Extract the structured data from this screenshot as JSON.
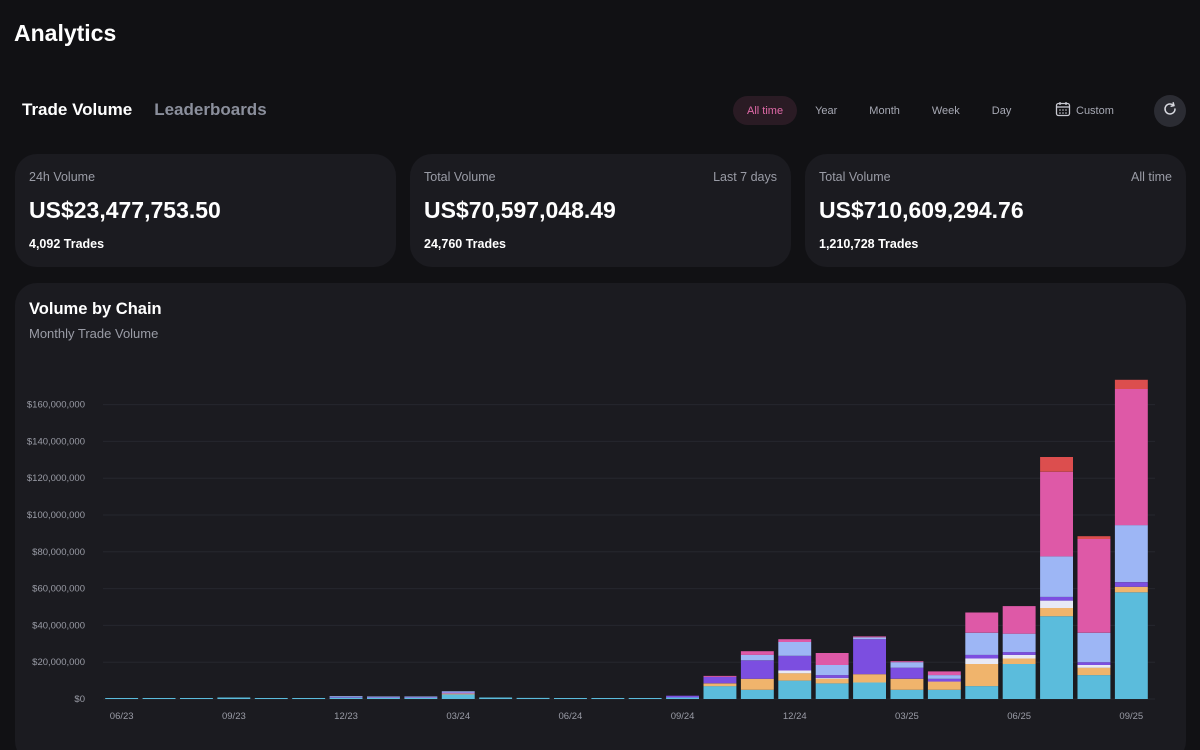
{
  "app": {
    "title": "Analytics"
  },
  "tabs": [
    {
      "label": "Trade Volume",
      "active": true
    },
    {
      "label": "Leaderboards",
      "active": false
    }
  ],
  "time_range": {
    "options": [
      "All time",
      "Year",
      "Month",
      "Week",
      "Day"
    ],
    "selected": "All time",
    "custom_label": "Custom"
  },
  "stats": [
    {
      "label": "24h Volume",
      "period": "",
      "value": "US$23,477,753.50",
      "trades": "4,092 Trades"
    },
    {
      "label": "Total Volume",
      "period": "Last 7 days",
      "value": "US$70,597,048.49",
      "trades": "24,760 Trades"
    },
    {
      "label": "Total Volume",
      "period": "All time",
      "value": "US$710,609,294.76",
      "trades": "1,210,728 Trades"
    }
  ],
  "chart_section": {
    "title": "Volume by Chain",
    "subtitle": "Monthly Trade Volume"
  },
  "chart_data": {
    "type": "bar",
    "stacked": true,
    "title": "Volume by Chain",
    "subtitle": "Monthly Trade Volume",
    "ylim": [
      0,
      175000000
    ],
    "y_ticks": [
      0,
      20000000,
      40000000,
      60000000,
      80000000,
      100000000,
      120000000,
      140000000,
      160000000
    ],
    "y_tick_labels": [
      "$0",
      "$20,000,000",
      "$40,000,000",
      "$60,000,000",
      "$80,000,000",
      "$100,000,000",
      "$120,000,000",
      "$140,000,000",
      "$160,000,000"
    ],
    "categories": [
      "06/23",
      "07/23",
      "08/23",
      "09/23",
      "10/23",
      "11/23",
      "12/23",
      "01/24",
      "02/24",
      "03/24",
      "04/24",
      "05/24",
      "06/24",
      "07/24",
      "08/24",
      "09/24",
      "10/24",
      "11/24",
      "12/24",
      "01/25",
      "02/25",
      "03/25",
      "04/25",
      "05/25",
      "06/25",
      "07/25",
      "08/25",
      "09/25"
    ],
    "x_tick_labels": [
      "06/23",
      "09/23",
      "12/23",
      "03/24",
      "06/24",
      "09/24",
      "12/24",
      "03/25",
      "06/25",
      "09/25"
    ],
    "grid": true,
    "legend": "none",
    "series": [
      {
        "name": "series-1",
        "color": "#5bbcdc",
        "values": [
          0.3,
          0.2,
          0.3,
          0.8,
          0.5,
          0.5,
          0.7,
          0.6,
          0.6,
          2.5,
          0.8,
          0.6,
          0.5,
          0.5,
          0.5,
          0.8,
          7,
          5,
          10,
          8.5,
          9,
          5,
          5,
          7,
          19,
          45,
          13,
          58
        ]
      },
      {
        "name": "series-2",
        "color": "#f0b46c",
        "values": [
          0,
          0,
          0,
          0,
          0,
          0,
          0,
          0,
          0,
          0.5,
          0,
          0,
          0,
          0,
          0,
          0,
          1.5,
          6,
          4,
          2.5,
          4.5,
          6,
          4.5,
          12,
          3,
          4.5,
          4,
          3
        ]
      },
      {
        "name": "series-3",
        "color": "#e8e9f5",
        "values": [
          0,
          0,
          0,
          0,
          0,
          0,
          0,
          0,
          0,
          0,
          0,
          0,
          0,
          0,
          0,
          0,
          0,
          0,
          1.5,
          0.5,
          0,
          0,
          0,
          3,
          2,
          4,
          1.5,
          0
        ]
      },
      {
        "name": "series-4",
        "color": "#7c4ee0",
        "values": [
          0,
          0,
          0,
          0,
          0,
          0,
          0.3,
          0.2,
          0.2,
          0.5,
          0,
          0,
          0,
          0,
          0,
          1,
          3.5,
          10,
          8,
          1.5,
          19,
          6,
          1.5,
          2,
          1.5,
          2,
          1.5,
          2.5
        ]
      },
      {
        "name": "series-5",
        "color": "#9db6f5",
        "values": [
          0,
          0,
          0,
          0,
          0,
          0,
          0.3,
          0.2,
          0.2,
          0.7,
          0,
          0,
          0,
          0,
          0,
          0,
          0,
          3,
          7.5,
          5.5,
          1,
          3,
          2,
          12,
          10,
          22,
          16,
          31
        ]
      },
      {
        "name": "series-6",
        "color": "#de59a7",
        "values": [
          0,
          0,
          0,
          0,
          0,
          0,
          0,
          0,
          0,
          0,
          0,
          0,
          0,
          0,
          0,
          0,
          0.5,
          2,
          1.5,
          6.5,
          0.5,
          0.5,
          2,
          11,
          15,
          46,
          51,
          74
        ]
      },
      {
        "name": "series-7",
        "color": "#dc4e4e",
        "values": [
          0,
          0,
          0,
          0,
          0,
          0,
          0,
          0,
          0,
          0,
          0,
          0,
          0,
          0,
          0,
          0,
          0,
          0,
          0,
          0,
          0,
          0,
          0,
          0,
          0,
          8,
          1.5,
          5
        ]
      }
    ],
    "value_unit": "millions USD"
  }
}
